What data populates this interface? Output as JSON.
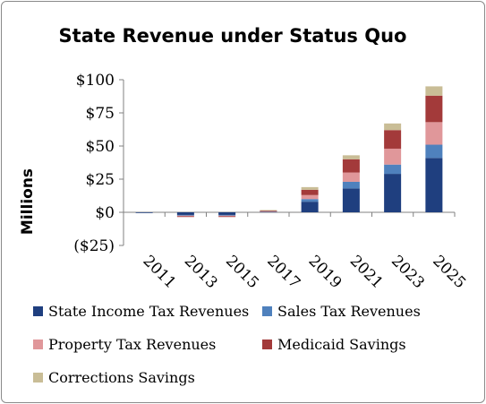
{
  "chart_data": {
    "type": "bar",
    "stacked": true,
    "title": "State Revenue under Status Quo",
    "xlabel": "",
    "ylabel": "Millions",
    "categories": [
      "2011",
      "2013",
      "2015",
      "2017",
      "2019",
      "2021",
      "2023",
      "2025"
    ],
    "yticks": [
      "$100",
      "$75",
      "$50",
      "$25",
      "$0",
      "($25)"
    ],
    "ylim": [
      -25,
      100
    ],
    "grid": false,
    "legend_position": "bottom",
    "series": [
      {
        "name": "State Income Tax Revenues",
        "color": "#1f3f7f",
        "values": [
          -0.5,
          -2,
          -2,
          0.5,
          8,
          18,
          29,
          41
        ]
      },
      {
        "name": "Sales Tax Revenues",
        "color": "#4f81bd",
        "values": [
          0,
          -0.5,
          -0.5,
          0.2,
          2,
          5,
          7,
          10
        ]
      },
      {
        "name": "Property Tax Revenues",
        "color": "#e0979a",
        "values": [
          0,
          -0.5,
          -0.5,
          0.2,
          3,
          7,
          12,
          17
        ]
      },
      {
        "name": "Medicaid Savings",
        "color": "#a33a3a",
        "values": [
          0,
          -0.5,
          -0.5,
          0.3,
          4,
          10,
          14,
          20
        ]
      },
      {
        "name": "Corrections Savings",
        "color": "#c9bd96",
        "values": [
          0,
          0,
          0,
          0.5,
          2,
          3,
          5,
          7
        ]
      }
    ]
  }
}
